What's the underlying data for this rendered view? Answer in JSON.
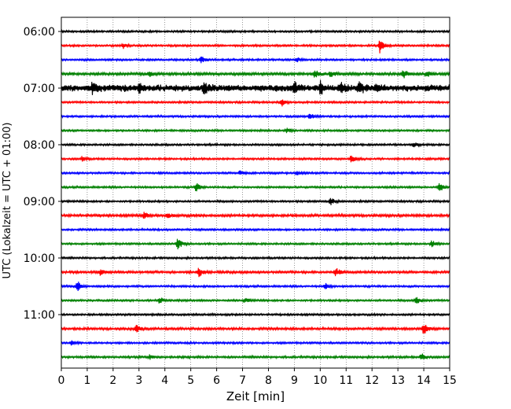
{
  "chart_data": {
    "type": "line",
    "title": "",
    "xlabel": "Zeit  [min]",
    "ylabel": "UTC (Lokalzeit = UTC + 01:00)",
    "xlim": [
      0,
      15
    ],
    "x_ticks": [
      "0",
      "1",
      "2",
      "3",
      "4",
      "5",
      "6",
      "7",
      "8",
      "9",
      "10",
      "11",
      "12",
      "13",
      "14",
      "15"
    ],
    "y_ticks": [
      "06:00",
      "07:00",
      "08:00",
      "09:00",
      "10:00",
      "11:00"
    ],
    "grid": "vertical dotted at each minute",
    "trace_colors": [
      "#000000",
      "#ff0000",
      "#0000ff",
      "#008000"
    ],
    "series": [
      {
        "start": "06:00",
        "amplitude": 1.0,
        "events": []
      },
      {
        "start": "06:15",
        "amplitude": 1.0,
        "events": [
          {
            "t": 2.4,
            "amp": 3
          },
          {
            "t": 12.3,
            "amp": 9
          }
        ]
      },
      {
        "start": "06:30",
        "amplitude": 1.0,
        "events": [
          {
            "t": 5.4,
            "amp": 5
          },
          {
            "t": 9.1,
            "amp": 2.5
          }
        ]
      },
      {
        "start": "06:45",
        "amplitude": 1.4,
        "events": [
          {
            "t": 3.4,
            "amp": 3
          },
          {
            "t": 9.8,
            "amp": 5
          },
          {
            "t": 10.4,
            "amp": 4
          },
          {
            "t": 13.2,
            "amp": 6
          },
          {
            "t": 14.1,
            "amp": 4
          }
        ]
      },
      {
        "start": "07:00",
        "amplitude": 3.5,
        "events": [
          {
            "t": 1.2,
            "amp": 5
          },
          {
            "t": 3.0,
            "amp": 5
          },
          {
            "t": 5.5,
            "amp": 6
          },
          {
            "t": 9.0,
            "amp": 7
          },
          {
            "t": 10.0,
            "amp": 9
          },
          {
            "t": 10.8,
            "amp": 8
          },
          {
            "t": 11.5,
            "amp": 7
          },
          {
            "t": 12.2,
            "amp": 5
          }
        ]
      },
      {
        "start": "07:15",
        "amplitude": 1.0,
        "events": [
          {
            "t": 8.5,
            "amp": 6
          }
        ]
      },
      {
        "start": "07:30",
        "amplitude": 1.0,
        "events": [
          {
            "t": 9.6,
            "amp": 4
          }
        ]
      },
      {
        "start": "07:45",
        "amplitude": 1.0,
        "events": [
          {
            "t": 8.7,
            "amp": 4
          }
        ]
      },
      {
        "start": "08:00",
        "amplitude": 1.0,
        "events": [
          {
            "t": 13.6,
            "amp": 3
          }
        ]
      },
      {
        "start": "08:15",
        "amplitude": 1.0,
        "events": [
          {
            "t": 0.8,
            "amp": 3
          },
          {
            "t": 11.2,
            "amp": 6
          }
        ]
      },
      {
        "start": "08:30",
        "amplitude": 1.0,
        "events": [
          {
            "t": 6.9,
            "amp": 4
          },
          {
            "t": 9.1,
            "amp": 3
          }
        ]
      },
      {
        "start": "08:45",
        "amplitude": 1.0,
        "events": [
          {
            "t": 5.2,
            "amp": 6
          },
          {
            "t": 14.6,
            "amp": 6
          }
        ]
      },
      {
        "start": "09:00",
        "amplitude": 1.0,
        "events": [
          {
            "t": 10.4,
            "amp": 5
          }
        ]
      },
      {
        "start": "09:15",
        "amplitude": 1.3,
        "events": [
          {
            "t": 3.2,
            "amp": 4
          },
          {
            "t": 4.1,
            "amp": 3
          }
        ]
      },
      {
        "start": "09:30",
        "amplitude": 1.0,
        "events": []
      },
      {
        "start": "09:45",
        "amplitude": 1.0,
        "events": [
          {
            "t": 4.5,
            "amp": 8
          },
          {
            "t": 14.3,
            "amp": 5
          }
        ]
      },
      {
        "start": "10:00",
        "amplitude": 1.0,
        "events": []
      },
      {
        "start": "10:15",
        "amplitude": 1.2,
        "events": [
          {
            "t": 1.5,
            "amp": 4
          },
          {
            "t": 5.3,
            "amp": 7
          },
          {
            "t": 10.6,
            "amp": 6
          }
        ]
      },
      {
        "start": "10:30",
        "amplitude": 1.0,
        "events": [
          {
            "t": 0.6,
            "amp": 8
          },
          {
            "t": 10.2,
            "amp": 4
          }
        ]
      },
      {
        "start": "10:45",
        "amplitude": 1.0,
        "events": [
          {
            "t": 3.8,
            "amp": 5
          },
          {
            "t": 7.1,
            "amp": 3
          },
          {
            "t": 13.7,
            "amp": 6
          }
        ]
      },
      {
        "start": "11:00",
        "amplitude": 1.0,
        "events": []
      },
      {
        "start": "11:15",
        "amplitude": 1.2,
        "events": [
          {
            "t": 2.9,
            "amp": 5
          },
          {
            "t": 14.0,
            "amp": 8
          }
        ]
      },
      {
        "start": "11:30",
        "amplitude": 1.0,
        "events": [
          {
            "t": 0.4,
            "amp": 3
          }
        ]
      },
      {
        "start": "11:45",
        "amplitude": 1.1,
        "events": [
          {
            "t": 3.4,
            "amp": 3
          },
          {
            "t": 13.9,
            "amp": 5
          }
        ]
      }
    ]
  }
}
